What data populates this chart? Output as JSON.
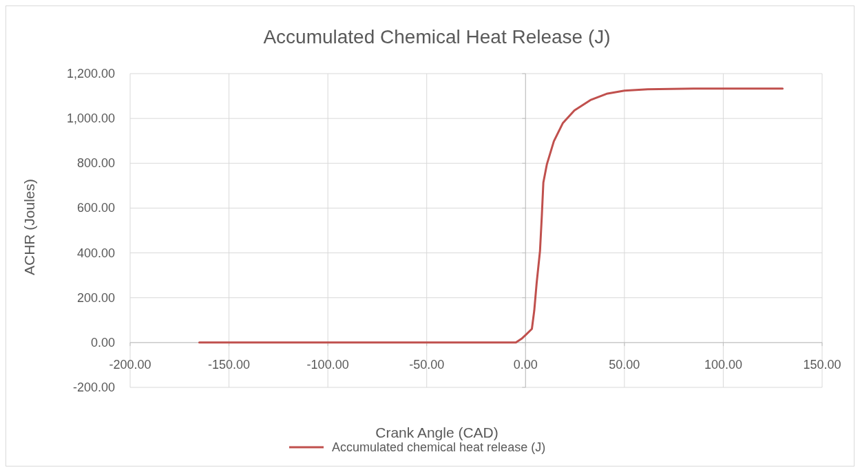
{
  "chart_data": {
    "type": "line",
    "title": "Accumulated Chemical Heat Release (J)",
    "xlabel": "Crank Angle (CAD)",
    "ylabel": "ACHR (Joules)",
    "x": [
      -165,
      -100,
      -50,
      -4.9,
      -2,
      0.3,
      3.2,
      4.4,
      5.6,
      7.3,
      8.2,
      9,
      10.8,
      14.3,
      18.9,
      24.7,
      32.8,
      41,
      50,
      61.8,
      85,
      130
    ],
    "series": [
      {
        "name": "Accumulated chemical heat release (J)",
        "color": "#c0504d",
        "values": [
          0,
          0,
          0,
          0,
          17,
          36,
          61,
          143,
          265,
          408,
          561,
          714,
          796,
          898,
          980,
          1036,
          1082,
          1110,
          1124,
          1130,
          1133,
          1133
        ]
      }
    ],
    "xlim": [
      -200,
      150
    ],
    "ylim": [
      -200,
      1200
    ],
    "xticks": [
      {
        "value": -200,
        "label": "-200.00"
      },
      {
        "value": -150,
        "label": "-150.00"
      },
      {
        "value": -100,
        "label": "-100.00"
      },
      {
        "value": -50,
        "label": "-50.00"
      },
      {
        "value": 0,
        "label": "0.00"
      },
      {
        "value": 50,
        "label": "50.00"
      },
      {
        "value": 100,
        "label": "100.00"
      },
      {
        "value": 150,
        "label": "150.00"
      }
    ],
    "yticks": [
      {
        "value": -200,
        "label": "-200.00"
      },
      {
        "value": 0,
        "label": "0.00"
      },
      {
        "value": 200,
        "label": "200.00"
      },
      {
        "value": 400,
        "label": "400.00"
      },
      {
        "value": 600,
        "label": "600.00"
      },
      {
        "value": 800,
        "label": "800.00"
      },
      {
        "value": 1000,
        "label": "1,000.00"
      },
      {
        "value": 1200,
        "label": "1,200.00"
      }
    ],
    "grid": true,
    "legend": "bottom",
    "marker": "none",
    "line_style": "solid"
  }
}
